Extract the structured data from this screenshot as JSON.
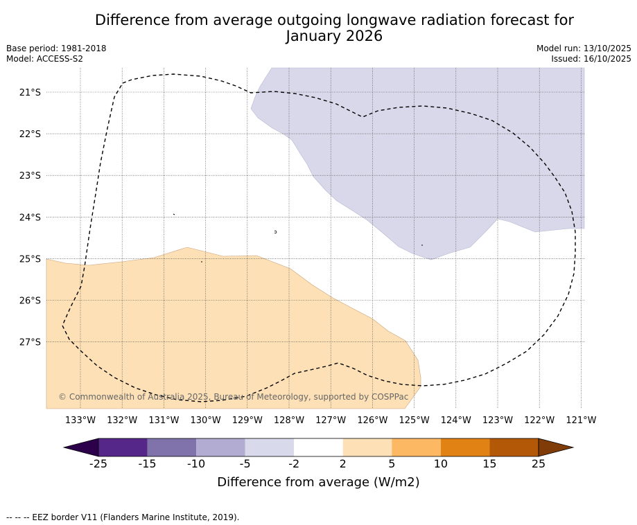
{
  "title": {
    "line1": "Difference from average outgoing longwave radiation forecast for",
    "line2": "January 2026"
  },
  "meta": {
    "base_period": "Base period: 1981-2018",
    "model": "Model: ACCESS-S2",
    "model_run": "Model run: 13/10/2025",
    "issued": "Issued: 16/10/2025"
  },
  "map": {
    "lat_labels": [
      "21°S",
      "22°S",
      "23°S",
      "24°S",
      "25°S",
      "26°S",
      "27°S"
    ],
    "lon_labels": [
      "133°W",
      "132°W",
      "131°W",
      "130°W",
      "129°W",
      "128°W",
      "127°W",
      "126°W",
      "125°W",
      "124°W",
      "123°W",
      "122°W",
      "121°W"
    ],
    "copyright": "© Commonwealth of Australia 2025, Bureau of Meteorology, supported by COSPPac",
    "colors": {
      "negative_light": "#d8d8ea",
      "positive_light": "#fde0b6"
    }
  },
  "colorbar": {
    "ticks": [
      "-25",
      "-15",
      "-10",
      "-5",
      "-2",
      "2",
      "5",
      "10",
      "15",
      "25"
    ],
    "colors": [
      "#2d004b",
      "#542788",
      "#8073ac",
      "#b2abd2",
      "#d8daeb",
      "#ffffff",
      "#fee0b6",
      "#fdb863",
      "#e08214",
      "#b35806",
      "#7f3b08"
    ],
    "title": "Difference from average (W/m2)"
  },
  "legend": {
    "eez": "--  --  -- EEZ border V11 (Flanders Marine Institute, 2019)."
  }
}
